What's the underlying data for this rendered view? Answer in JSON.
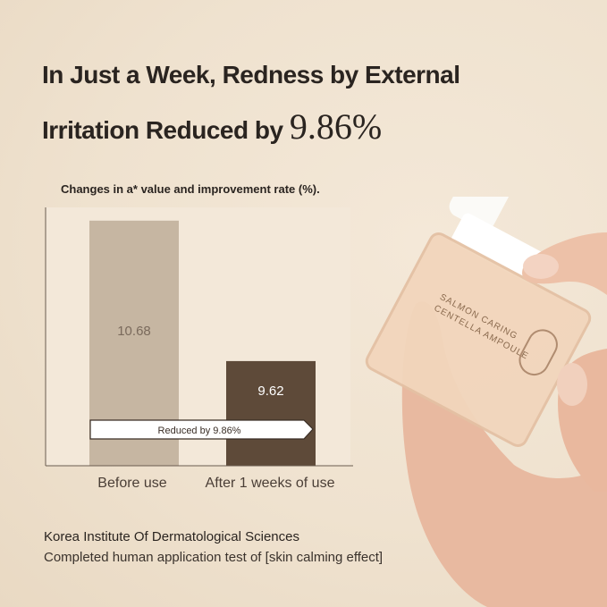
{
  "headline": {
    "line1": "In Just a Week, Redness by External",
    "line2_prefix": "Irritation Reduced by",
    "line2_highlight": "9.86%"
  },
  "chart_data": {
    "type": "bar",
    "title": "Changes in a* value and improvement rate (%).",
    "categories": [
      "Before use",
      "After 1 weeks of use"
    ],
    "values": [
      10.68,
      9.62
    ],
    "value_labels": [
      "10.68",
      "9.62"
    ],
    "bar_colors": [
      "#c6b6a2",
      "#5e4a39"
    ],
    "ylim": [
      8.83,
      10.78
    ],
    "grid": false,
    "annotation": "Reduced by 9.86%"
  },
  "footer": {
    "source": "Korea Institute Of Dermatological Sciences",
    "note": "Completed human application test of [skin calming effect]"
  },
  "product": {
    "label_line1": "SALMON CARING",
    "label_line2": "CENTELLA AMPOULE"
  }
}
